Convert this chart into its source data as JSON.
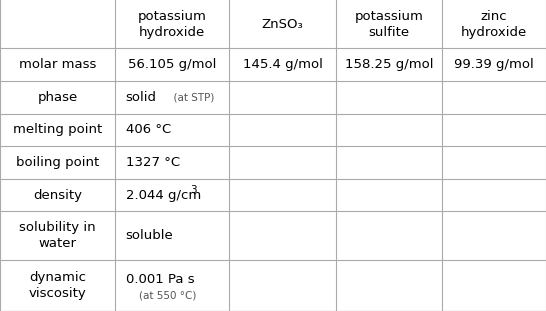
{
  "col_headers": [
    "potassium\nhydroxide",
    "ZnSO₃",
    "potassium\nsulfite",
    "zinc\nhydroxide"
  ],
  "row_headers": [
    "molar mass",
    "phase",
    "melting point",
    "boiling point",
    "density",
    "solubility in\nwater",
    "dynamic\nviscosity"
  ],
  "cells": [
    [
      "56.105 g/mol",
      "145.4 g/mol",
      "158.25 g/mol",
      "99.39 g/mol"
    ],
    [
      "solid  (at STP)",
      "",
      "",
      ""
    ],
    [
      "406 °C",
      "",
      "",
      ""
    ],
    [
      "1327 °C",
      "",
      "",
      ""
    ],
    [
      "2.044 g/cm³",
      "",
      "",
      ""
    ],
    [
      "soluble",
      "",
      "",
      ""
    ],
    [
      "0.001 Pa s\n(at 550 °C)",
      "",
      "",
      ""
    ]
  ],
  "phase_main": "solid",
  "phase_note": "  (at STP)",
  "density_main": "2.044 g/cm",
  "density_super": "3",
  "viscosity_main": "0.001 Pa s",
  "viscosity_note": "(at 550 °C)",
  "bg_color": "#ffffff",
  "line_color": "#aaaaaa",
  "text_color": "#000000",
  "note_color": "#555555",
  "header_fontsize": 9.5,
  "cell_fontsize": 9.5,
  "row_header_fontsize": 9.5,
  "note_fontsize": 7.5
}
